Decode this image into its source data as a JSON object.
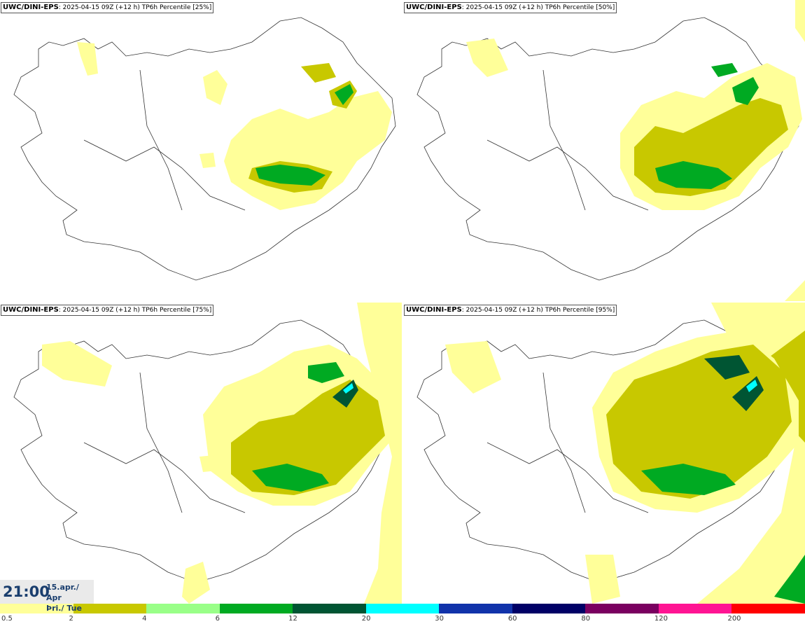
{
  "panels": [
    {
      "model": "UWC/DINI-EPS",
      "info": ": 2025-04-15 09Z (+12 h) TP6h Percentile [25%]"
    },
    {
      "model": "UWC/DINI-EPS",
      "info": ": 2025-04-15 09Z (+12 h) TP6h Percentile [50%]"
    },
    {
      "model": "UWC/DINI-EPS",
      "info": ": 2025-04-15 09Z (+12 h) TP6h Percentile [75%]"
    },
    {
      "model": "UWC/DINI-EPS",
      "info": ": 2025-04-15 09Z (+12 h) TP6h Percentile [95%]"
    }
  ],
  "timestamp": {
    "time": "21:00",
    "date_line1": "15.apr./ Apr",
    "date_line2": "Þri./ Tue"
  },
  "legend": {
    "labels": [
      "0.5",
      "2",
      "4",
      "6",
      "12",
      "20",
      "30",
      "60",
      "80",
      "120",
      "200"
    ],
    "colors": [
      "#ffff99",
      "#c8c800",
      "#99ff88",
      "#00aa22",
      "#005533",
      "#00ffff",
      "#1133aa",
      "#000066",
      "#7a0060",
      "#ff1493",
      "#ff0000"
    ]
  }
}
